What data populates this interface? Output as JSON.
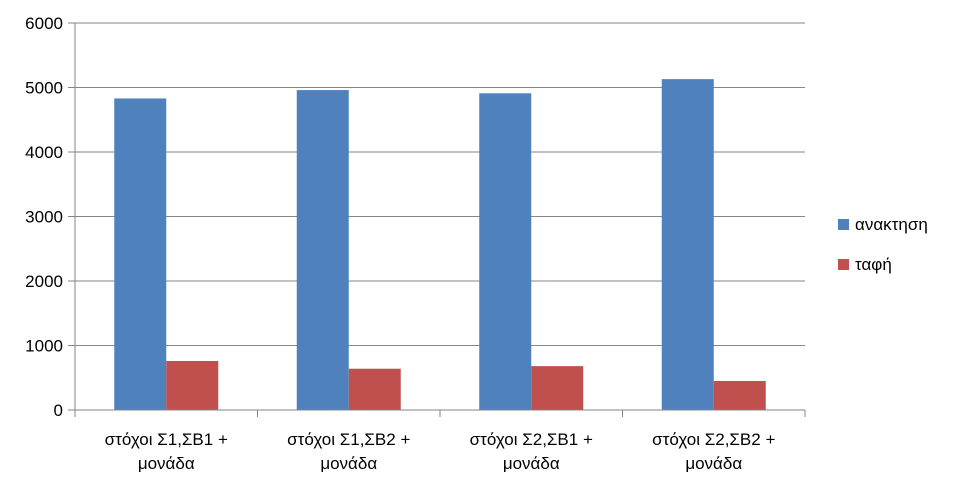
{
  "chart_data": {
    "type": "bar",
    "categories": [
      [
        "στόχοι Σ1,ΣΒ1 +",
        "μονάδα"
      ],
      [
        "στόχοι Σ1,ΣΒ2 +",
        "μονάδα"
      ],
      [
        "στόχοι Σ2,ΣΒ1 +",
        "μονάδα"
      ],
      [
        "στόχοι Σ2,ΣΒ2 +",
        "μονάδα"
      ]
    ],
    "series": [
      {
        "name": "ανακτηση",
        "color": "#4F81BD",
        "values": [
          4830,
          4960,
          4910,
          5130
        ]
      },
      {
        "name": "ταφή",
        "color": "#C0504D",
        "values": [
          760,
          640,
          680,
          450
        ]
      }
    ],
    "yticks": [
      "0",
      "1000",
      "2000",
      "3000",
      "4000",
      "5000",
      "6000"
    ],
    "ylim": [
      0,
      6000
    ],
    "grid": true,
    "legend": "right"
  }
}
